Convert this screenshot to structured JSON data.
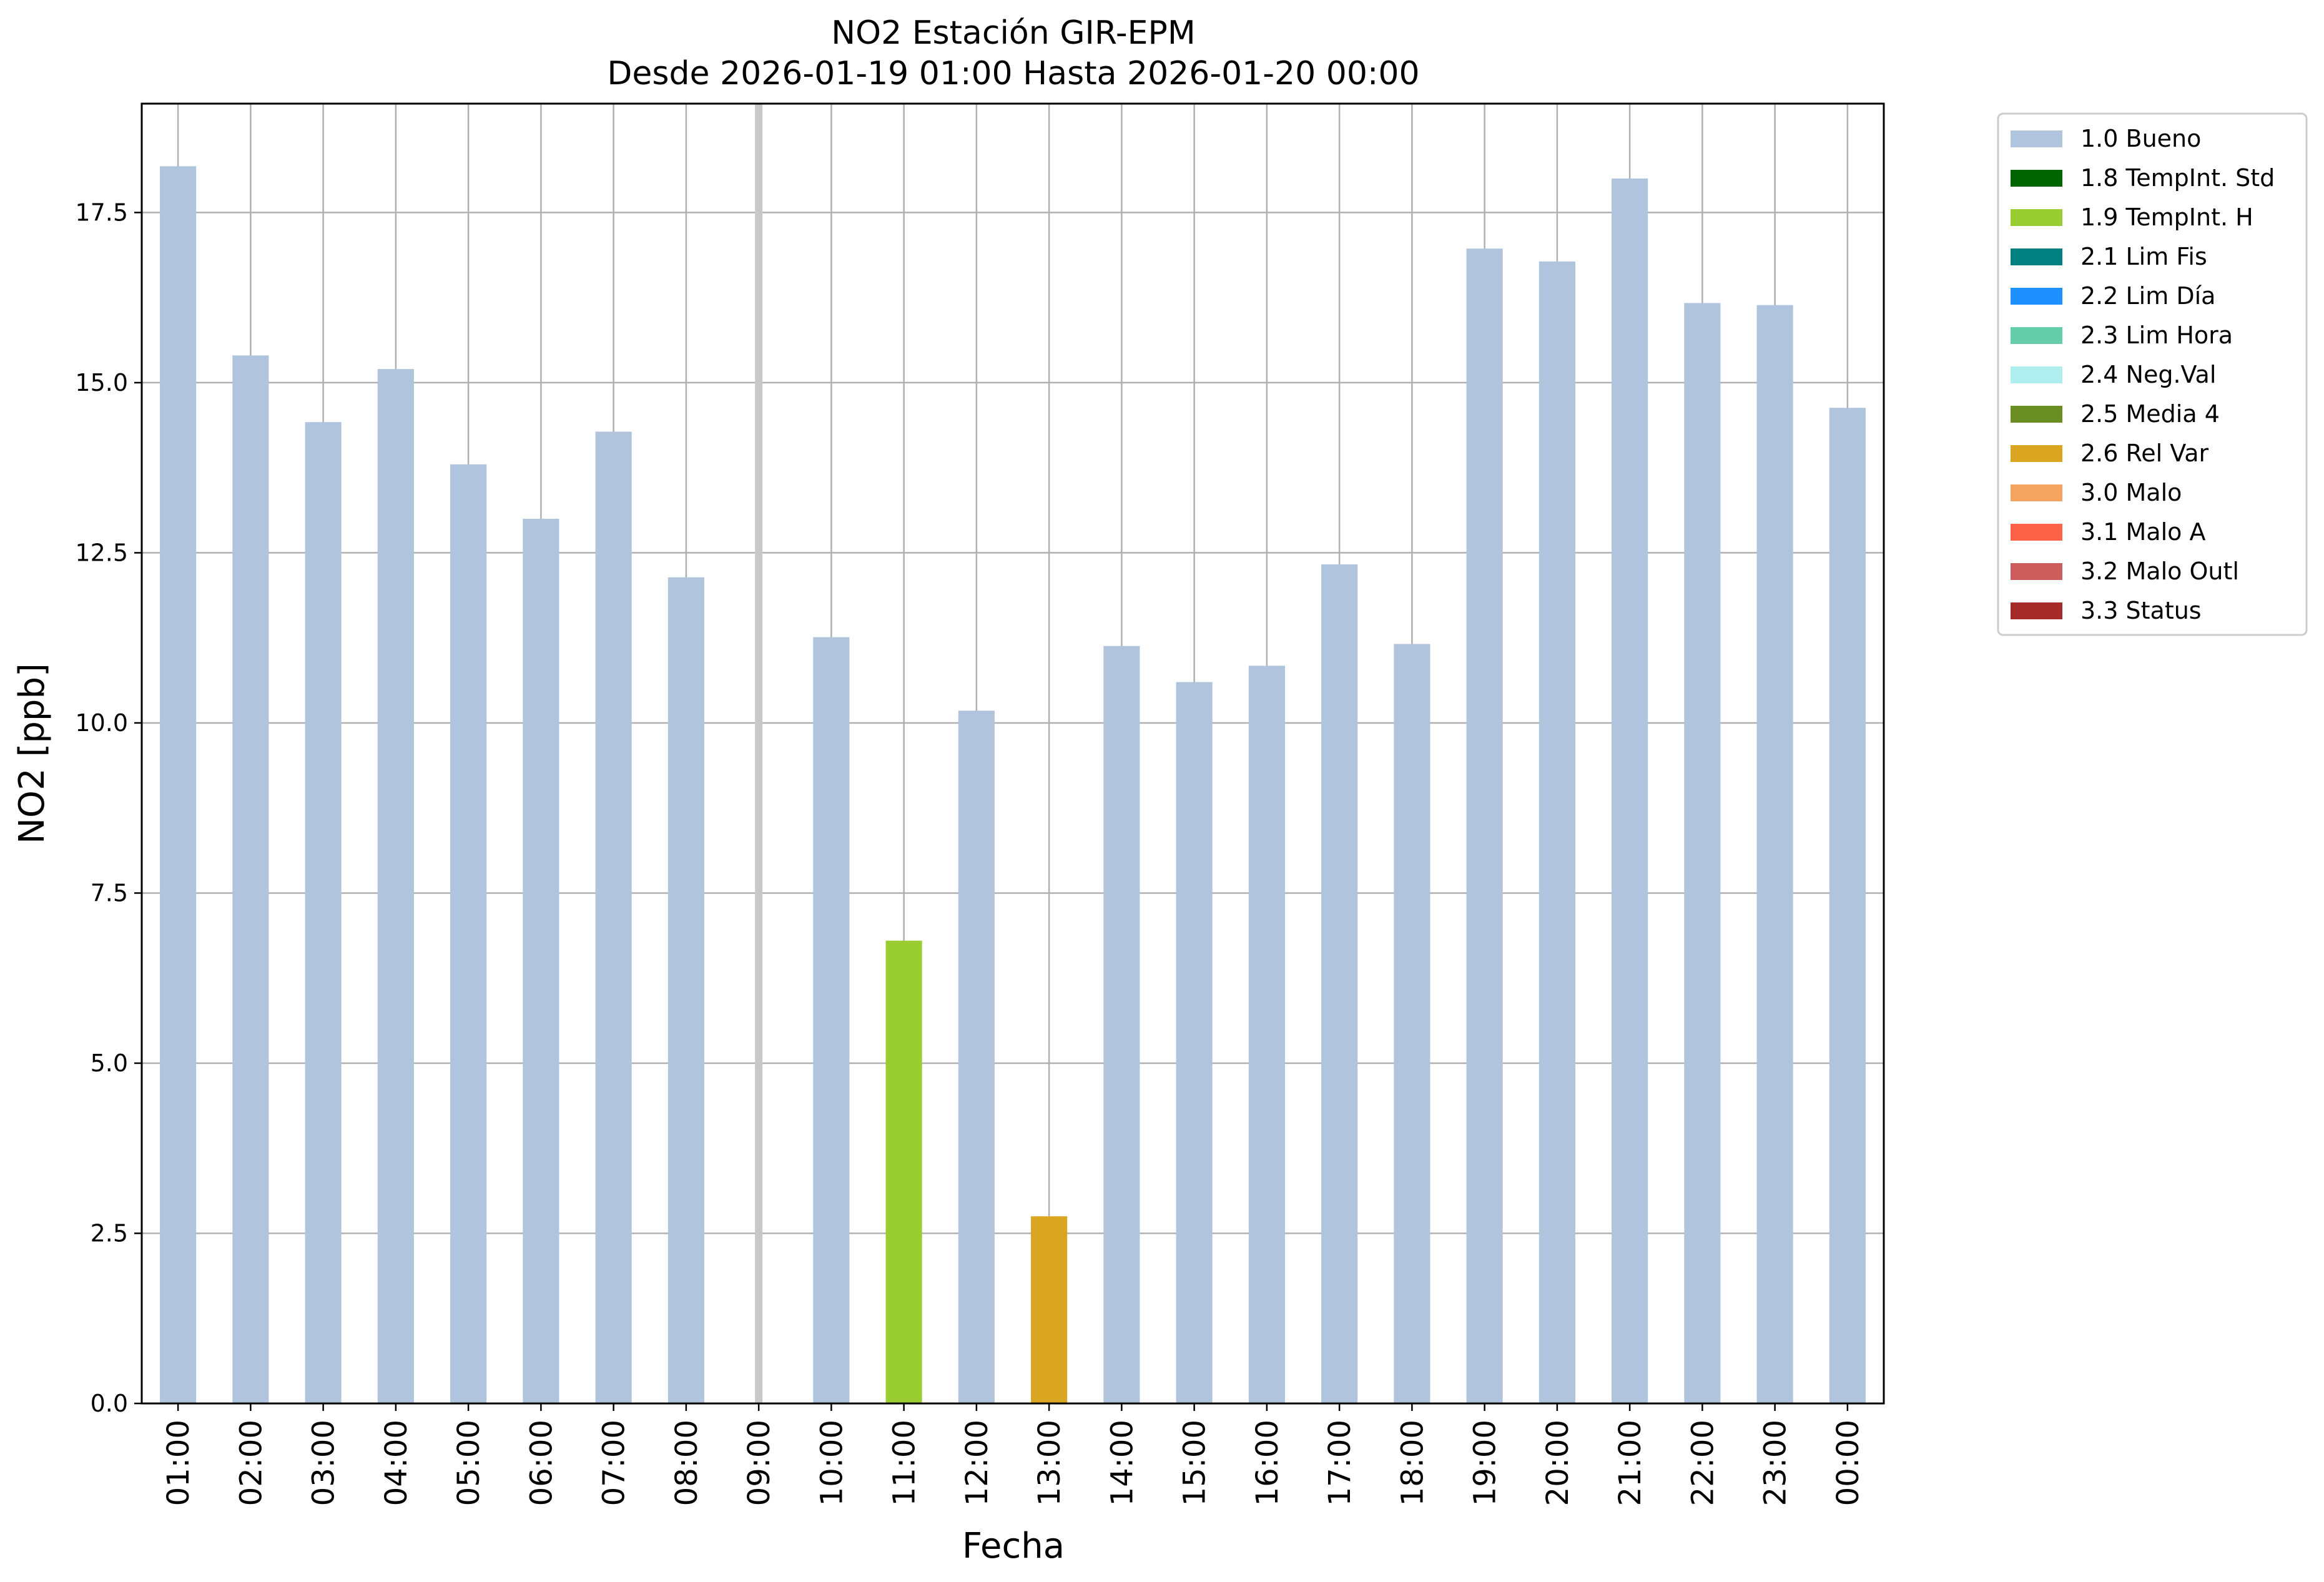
{
  "chart_data": {
    "type": "bar",
    "title": "NO2 Estación GIR-EPM",
    "subtitle": "Desde 2026-01-19 01:00 Hasta 2026-01-20 00:00",
    "xlabel": "Fecha",
    "ylabel": "NO2 [ppb]",
    "ylim": [
      0,
      19.1
    ],
    "yticks": [
      "0.0",
      "2.5",
      "5.0",
      "7.5",
      "10.0",
      "12.5",
      "15.0",
      "17.5"
    ],
    "grid": true,
    "legend_position": "outside-top-right",
    "categories": [
      "01:00",
      "02:00",
      "03:00",
      "04:00",
      "05:00",
      "06:00",
      "07:00",
      "08:00",
      "09:00",
      "10:00",
      "11:00",
      "12:00",
      "13:00",
      "14:00",
      "15:00",
      "16:00",
      "17:00",
      "18:00",
      "19:00",
      "20:00",
      "21:00",
      "22:00",
      "23:00",
      "00:00"
    ],
    "values": [
      18.18,
      15.4,
      14.42,
      15.2,
      13.8,
      13.0,
      14.28,
      12.14,
      null,
      11.26,
      6.8,
      10.18,
      2.75,
      11.13,
      10.6,
      10.84,
      12.33,
      11.16,
      16.97,
      16.78,
      18.0,
      16.17,
      16.14,
      14.63
    ],
    "flags": [
      "1.0 Bueno",
      "1.0 Bueno",
      "1.0 Bueno",
      "1.0 Bueno",
      "1.0 Bueno",
      "1.0 Bueno",
      "1.0 Bueno",
      "1.0 Bueno",
      null,
      "1.0 Bueno",
      "1.9 TempInt. H",
      "1.0 Bueno",
      "2.6 Rel Var",
      "1.0 Bueno",
      "1.0 Bueno",
      "1.0 Bueno",
      "1.0 Bueno",
      "1.0 Bueno",
      "1.0 Bueno",
      "1.0 Bueno",
      "1.0 Bueno",
      "1.0 Bueno",
      "1.0 Bueno",
      "1.0 Bueno"
    ],
    "missing_marker_category": "09:00",
    "legend": [
      {
        "label": "1.0 Bueno",
        "color": "#b0c4de"
      },
      {
        "label": "1.8 TempInt. Std",
        "color": "#006400"
      },
      {
        "label": "1.9 TempInt. H",
        "color": "#9acd32"
      },
      {
        "label": "2.1 Lim Fis",
        "color": "#008080"
      },
      {
        "label": "2.2 Lim Día",
        "color": "#1e90ff"
      },
      {
        "label": "2.3 Lim Hora",
        "color": "#66cdaa"
      },
      {
        "label": "2.4 Neg.Val",
        "color": "#afeeee"
      },
      {
        "label": "2.5 Media 4",
        "color": "#6b8e23"
      },
      {
        "label": "2.6 Rel Var",
        "color": "#daa520"
      },
      {
        "label": "3.0 Malo",
        "color": "#f4a460"
      },
      {
        "label": "3.1 Malo A",
        "color": "#ff6347"
      },
      {
        "label": "3.2 Malo Outl",
        "color": "#cd5c5c"
      },
      {
        "label": "3.3 Status",
        "color": "#a52a2a"
      }
    ]
  }
}
